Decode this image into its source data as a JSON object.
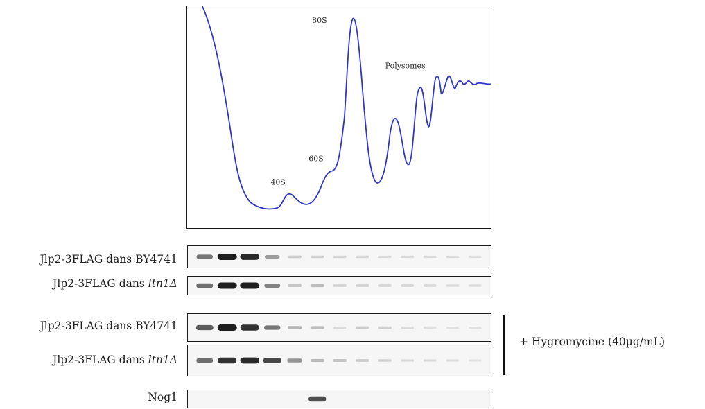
{
  "profile": {
    "peaks": [
      {
        "label": "40S",
        "key": "p40"
      },
      {
        "label": "60S",
        "key": "p60"
      },
      {
        "label": "80S",
        "key": "p80"
      },
      {
        "label": "Polysomes",
        "key": "poly"
      }
    ],
    "trace_color": "#2e35c8"
  },
  "blots": [
    {
      "label_prefix": "Jlp2-3FLAG dans ",
      "label_strain": "BY4741",
      "italic": false,
      "bands": [
        0.55,
        1.0,
        0.95,
        0.35,
        0.12,
        0.1,
        0.08,
        0.07,
        0.06,
        0.05,
        0.05,
        0.04,
        0.03
      ]
    },
    {
      "label_prefix": "Jlp2-3FLAG dans ",
      "label_strain": "ltn1Δ",
      "italic": true,
      "bands": [
        0.6,
        1.0,
        1.0,
        0.5,
        0.15,
        0.2,
        0.1,
        0.1,
        0.08,
        0.08,
        0.07,
        0.06,
        0.05
      ]
    },
    {
      "label_prefix": "Jlp2-3FLAG dans ",
      "label_strain": "BY4741",
      "italic": false,
      "bands": [
        0.7,
        1.0,
        0.9,
        0.55,
        0.25,
        0.2,
        0.05,
        0.12,
        0.1,
        0.04,
        0.03,
        0.02,
        0.02
      ]
    },
    {
      "label_prefix": "Jlp2-3FLAG dans ",
      "label_strain": "ltn1Δ",
      "italic": true,
      "bands": [
        0.6,
        0.9,
        0.95,
        0.8,
        0.4,
        0.2,
        0.15,
        0.12,
        0.1,
        0.06,
        0.05,
        0.03,
        0.02
      ]
    },
    {
      "label_prefix": "Nog1",
      "label_strain": "",
      "italic": false,
      "bands": [
        0,
        0,
        0,
        0,
        0,
        0.75,
        0,
        0,
        0,
        0,
        0,
        0,
        0
      ]
    }
  ],
  "treatment_label": "+ Hygromycine (40µg/mL)",
  "colors": {
    "trace": "#2e35c8",
    "band": "#1a1a1a",
    "frame": "#1a1a1a"
  }
}
